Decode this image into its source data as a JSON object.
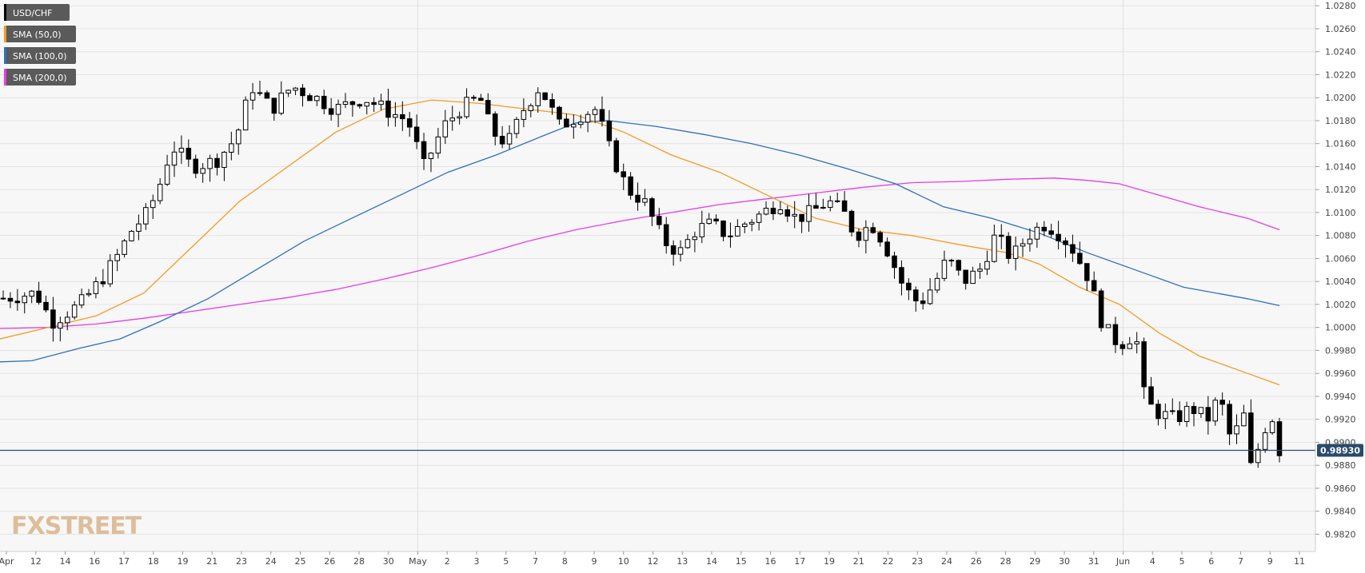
{
  "chart_data": {
    "type": "candlestick",
    "title": "USD/CHF",
    "legend": [
      {
        "name": "USD/CHF",
        "color": "#000000"
      },
      {
        "name": "SMA (50,0)",
        "color": "#f59a23"
      },
      {
        "name": "SMA (100,0)",
        "color": "#2f6fbf"
      },
      {
        "name": "SMA (200,0)",
        "color": "#e83ce8"
      }
    ],
    "watermark": "FXSTREET",
    "ylim": [
      0.9805,
      1.0285
    ],
    "grid": true,
    "y_ticks": [
      "1.0280",
      "1.0260",
      "1.0240",
      "1.0220",
      "1.0200",
      "1.0180",
      "1.0160",
      "1.0140",
      "1.0120",
      "1.0100",
      "1.0080",
      "1.0060",
      "1.0040",
      "1.0020",
      "1.0000",
      "0.9980",
      "0.9960",
      "0.9940",
      "0.9920",
      "0.9900",
      "0.9880",
      "0.9860",
      "0.9840",
      "0.9820"
    ],
    "x_ticks": [
      "Apr",
      "12",
      "14",
      "16",
      "17",
      "18",
      "19",
      "21",
      "23",
      "24",
      "25",
      "26",
      "28",
      "30",
      "May",
      "2",
      "3",
      "5",
      "7",
      "8",
      "9",
      "10",
      "12",
      "13",
      "14",
      "15",
      "16",
      "17",
      "19",
      "21",
      "22",
      "23",
      "24",
      "26",
      "28",
      "29",
      "30",
      "31",
      "Jun",
      "4",
      "5",
      "6",
      "7",
      "9",
      "11"
    ],
    "last_price": 0.9893,
    "last_price_label": "0.98930",
    "candles_count": 180,
    "sma_colors": {
      "sma50": "#f59a23",
      "sma100": "#2f6fbf",
      "sma200": "#e83ce8"
    }
  }
}
